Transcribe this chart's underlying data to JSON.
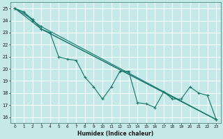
{
  "xlabel": "Humidex (Indice chaleur)",
  "xlim": [
    -0.5,
    23.5
  ],
  "ylim": [
    15.5,
    25.5
  ],
  "xticks": [
    0,
    1,
    2,
    3,
    4,
    5,
    6,
    7,
    8,
    9,
    10,
    11,
    12,
    13,
    14,
    15,
    16,
    17,
    18,
    19,
    20,
    21,
    22,
    23
  ],
  "yticks": [
    16,
    17,
    18,
    19,
    20,
    21,
    22,
    23,
    24,
    25
  ],
  "bg_color": "#c5e8e8",
  "grid_color": "#b0d8d8",
  "line_color": "#1a7a6e",
  "series1_x": [
    0,
    1,
    2,
    3,
    4,
    5,
    6,
    7,
    8,
    9,
    10,
    11,
    12,
    13,
    14,
    15,
    16,
    17,
    18,
    19,
    20,
    21,
    22,
    23
  ],
  "series1_y": [
    25.0,
    24.7,
    24.1,
    23.3,
    23.0,
    21.0,
    20.8,
    20.7,
    19.3,
    18.5,
    17.5,
    18.5,
    19.8,
    19.8,
    17.2,
    17.1,
    16.8,
    18.1,
    17.5,
    17.5,
    18.5,
    18.0,
    17.8,
    15.8
  ],
  "series2_x": [
    0,
    2,
    3,
    23
  ],
  "series2_y": [
    25.0,
    24.1,
    23.3,
    15.8
  ],
  "series3_x": [
    0,
    1,
    2,
    3,
    23
  ],
  "series3_y": [
    25.0,
    24.7,
    24.0,
    23.5,
    15.8
  ],
  "series4_x": [
    0,
    3,
    23
  ],
  "series4_y": [
    25.0,
    23.3,
    15.8
  ]
}
